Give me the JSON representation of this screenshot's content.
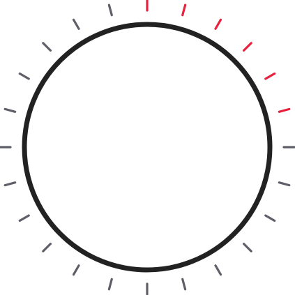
{
  "dial": {
    "tick_count": 24,
    "active_tick_count": 6,
    "progress_fraction": 0.25,
    "colors": {
      "ring": "#222222",
      "tick_active": "#e8213f",
      "tick_inactive": "#5e5f68",
      "background": "#ffffff"
    }
  }
}
